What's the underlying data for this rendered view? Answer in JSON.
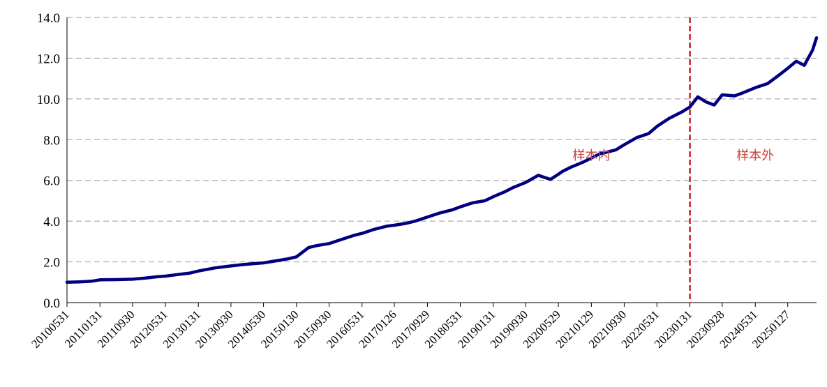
{
  "chart_data": {
    "type": "line",
    "title": "",
    "xlabel": "",
    "ylabel": "",
    "ylim": [
      0,
      14
    ],
    "yticks": [
      "0.0",
      "2.0",
      "4.0",
      "6.0",
      "8.0",
      "10.0",
      "12.0",
      "14.0"
    ],
    "grid": "horizontal-dashed",
    "x_tick_labels": [
      "20100531",
      "20110131",
      "20110930",
      "20120531",
      "20130131",
      "20130930",
      "20140530",
      "20150130",
      "20150930",
      "20160531",
      "20170126",
      "20170929",
      "20180531",
      "20190131",
      "20190930",
      "20200529",
      "20210129",
      "20210930",
      "20220531",
      "20230131",
      "20230928",
      "20240531",
      "20250127"
    ],
    "split_marker": {
      "x": "20230131",
      "color": "#d04040"
    },
    "annotations": [
      {
        "text": "样本内",
        "x": "20210129",
        "y": 7.5
      },
      {
        "text": "样本外",
        "x": "20240531",
        "y": 7.5
      }
    ],
    "series": [
      {
        "line_color": "#000080",
        "x": [
          "20100531",
          "20100831",
          "20101130",
          "20110131",
          "20110531",
          "20110930",
          "20111230",
          "20120330",
          "20120531",
          "20120831",
          "20121130",
          "20130131",
          "20130531",
          "20130930",
          "20131231",
          "20140331",
          "20140530",
          "20140829",
          "20141128",
          "20150130",
          "20150430",
          "20150630",
          "20150930",
          "20151231",
          "20160331",
          "20160531",
          "20160831",
          "20161130",
          "20170126",
          "20170428",
          "20170630",
          "20170929",
          "20171229",
          "20180330",
          "20180531",
          "20180831",
          "20181130",
          "20190131",
          "20190430",
          "20190628",
          "20190930",
          "20191231",
          "20200331",
          "20200529",
          "20200630",
          "20200831",
          "20201130",
          "20210129",
          "20210331",
          "20210531",
          "20210730",
          "20210930",
          "20211231",
          "20220331",
          "20220531",
          "20220831",
          "20221130",
          "20230131",
          "20230331",
          "20230531",
          "20230731",
          "20230928",
          "20231229",
          "20240229",
          "20240531",
          "20240830",
          "20241129",
          "20250127",
          "20250331",
          "20250530",
          "20250731",
          "20250829"
        ],
        "y": [
          1.0,
          1.02,
          1.05,
          1.12,
          1.13,
          1.15,
          1.2,
          1.27,
          1.3,
          1.38,
          1.45,
          1.55,
          1.7,
          1.8,
          1.87,
          1.92,
          1.95,
          2.05,
          2.15,
          2.25,
          2.7,
          2.8,
          2.9,
          3.1,
          3.3,
          3.4,
          3.6,
          3.75,
          3.8,
          3.9,
          4.0,
          4.2,
          4.4,
          4.55,
          4.7,
          4.9,
          5.0,
          5.2,
          5.45,
          5.65,
          5.9,
          6.25,
          6.05,
          6.3,
          6.45,
          6.65,
          6.9,
          7.1,
          7.3,
          7.4,
          7.5,
          7.75,
          8.1,
          8.3,
          8.65,
          9.05,
          9.35,
          9.6,
          10.1,
          9.85,
          9.7,
          10.2,
          10.15,
          10.3,
          10.55,
          10.75,
          11.2,
          11.5,
          11.85,
          11.65,
          12.4,
          13.0
        ]
      }
    ]
  }
}
